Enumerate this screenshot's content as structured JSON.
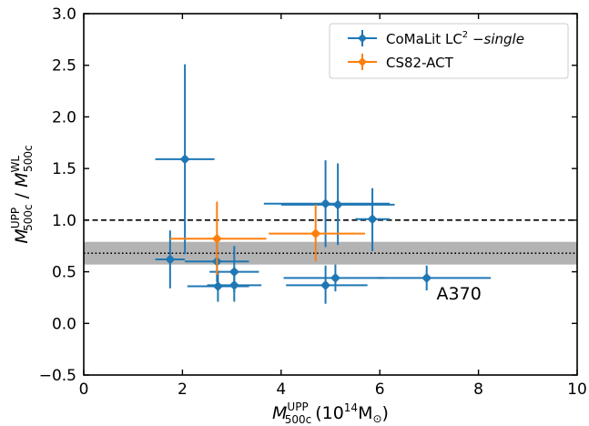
{
  "chart_data": {
    "type": "scatter",
    "x_axis": {
      "label_main": "M",
      "label_sub": "500c",
      "label_sup": "UPP",
      "label_units": "(10",
      "label_units_exp": "14",
      "label_units_end": "M",
      "label_units_sub": "⊙",
      "label_units_close": ")",
      "range": [
        0,
        10
      ],
      "ticks": [
        0,
        2,
        4,
        6,
        8,
        10
      ],
      "tick_labels": [
        "0",
        "2",
        "4",
        "6",
        "8",
        "10"
      ]
    },
    "y_axis": {
      "label_num_main": "M",
      "label_num_sub": "500c",
      "label_num_sup": "UPP",
      "label_slash": " / ",
      "label_den_main": "M",
      "label_den_sub": "500c",
      "label_den_sup": "WL",
      "range": [
        -0.5,
        3.0
      ],
      "ticks": [
        -0.5,
        0.0,
        0.5,
        1.0,
        1.5,
        2.0,
        2.5,
        3.0
      ],
      "tick_labels": [
        "−0.5",
        "0.0",
        "0.5",
        "1.0",
        "1.5",
        "2.0",
        "2.5",
        "3.0"
      ]
    },
    "reference_lines": [
      {
        "y": 1.0,
        "style": "dashed"
      },
      {
        "y": 0.68,
        "style": "dotted"
      }
    ],
    "band": {
      "y_low": 0.57,
      "y_high": 0.79,
      "color": "#b3b3b3"
    },
    "series": [
      {
        "name_main": "CoMaLit LC",
        "name_sup": "2",
        "name_rest": " −",
        "name_italic": "single",
        "color": "#1f77b4",
        "points": [
          {
            "x": 2.05,
            "y": 1.59,
            "xlo": 1.45,
            "xhi": 2.65,
            "ylo": 0.67,
            "yhi": 2.51
          },
          {
            "x": 1.75,
            "y": 0.62,
            "xlo": 1.45,
            "xhi": 2.05,
            "ylo": 0.34,
            "yhi": 0.9
          },
          {
            "x": 2.7,
            "y": 0.6,
            "xlo": 2.05,
            "xhi": 3.35,
            "ylo": 0.4,
            "yhi": 0.8
          },
          {
            "x": 3.05,
            "y": 0.5,
            "xlo": 2.55,
            "xhi": 3.55,
            "ylo": 0.3,
            "yhi": 0.75
          },
          {
            "x": 2.72,
            "y": 0.36,
            "xlo": 2.1,
            "xhi": 3.35,
            "ylo": 0.21,
            "yhi": 0.51
          },
          {
            "x": 3.05,
            "y": 0.37,
            "xlo": 2.5,
            "xhi": 3.6,
            "ylo": 0.21,
            "yhi": 0.53
          },
          {
            "x": 4.9,
            "y": 1.16,
            "xlo": 3.65,
            "xhi": 6.2,
            "ylo": 0.74,
            "yhi": 1.58
          },
          {
            "x": 5.15,
            "y": 1.15,
            "xlo": 4.0,
            "xhi": 6.3,
            "ylo": 0.76,
            "yhi": 1.55
          },
          {
            "x": 5.85,
            "y": 1.01,
            "xlo": 5.5,
            "xhi": 6.2,
            "ylo": 0.7,
            "yhi": 1.31
          },
          {
            "x": 5.1,
            "y": 0.44,
            "xlo": 4.05,
            "xhi": 6.1,
            "ylo": 0.31,
            "yhi": 0.57
          },
          {
            "x": 4.9,
            "y": 0.37,
            "xlo": 4.1,
            "xhi": 5.75,
            "ylo": 0.19,
            "yhi": 0.56
          },
          {
            "x": 6.95,
            "y": 0.44,
            "xlo": 5.95,
            "xhi": 8.25,
            "ylo": 0.32,
            "yhi": 0.56
          }
        ]
      },
      {
        "name": "CS82-ACT",
        "color": "#ff7f0e",
        "points": [
          {
            "x": 2.7,
            "y": 0.82,
            "xlo": 1.75,
            "xhi": 3.7,
            "ylo": 0.47,
            "yhi": 1.18
          },
          {
            "x": 4.7,
            "y": 0.87,
            "xlo": 3.75,
            "xhi": 5.7,
            "ylo": 0.6,
            "yhi": 1.15
          }
        ]
      }
    ],
    "annotations": [
      {
        "text": "A370",
        "x": 7.15,
        "y": 0.23
      }
    ],
    "legend_position": "top-right",
    "grid": false
  }
}
